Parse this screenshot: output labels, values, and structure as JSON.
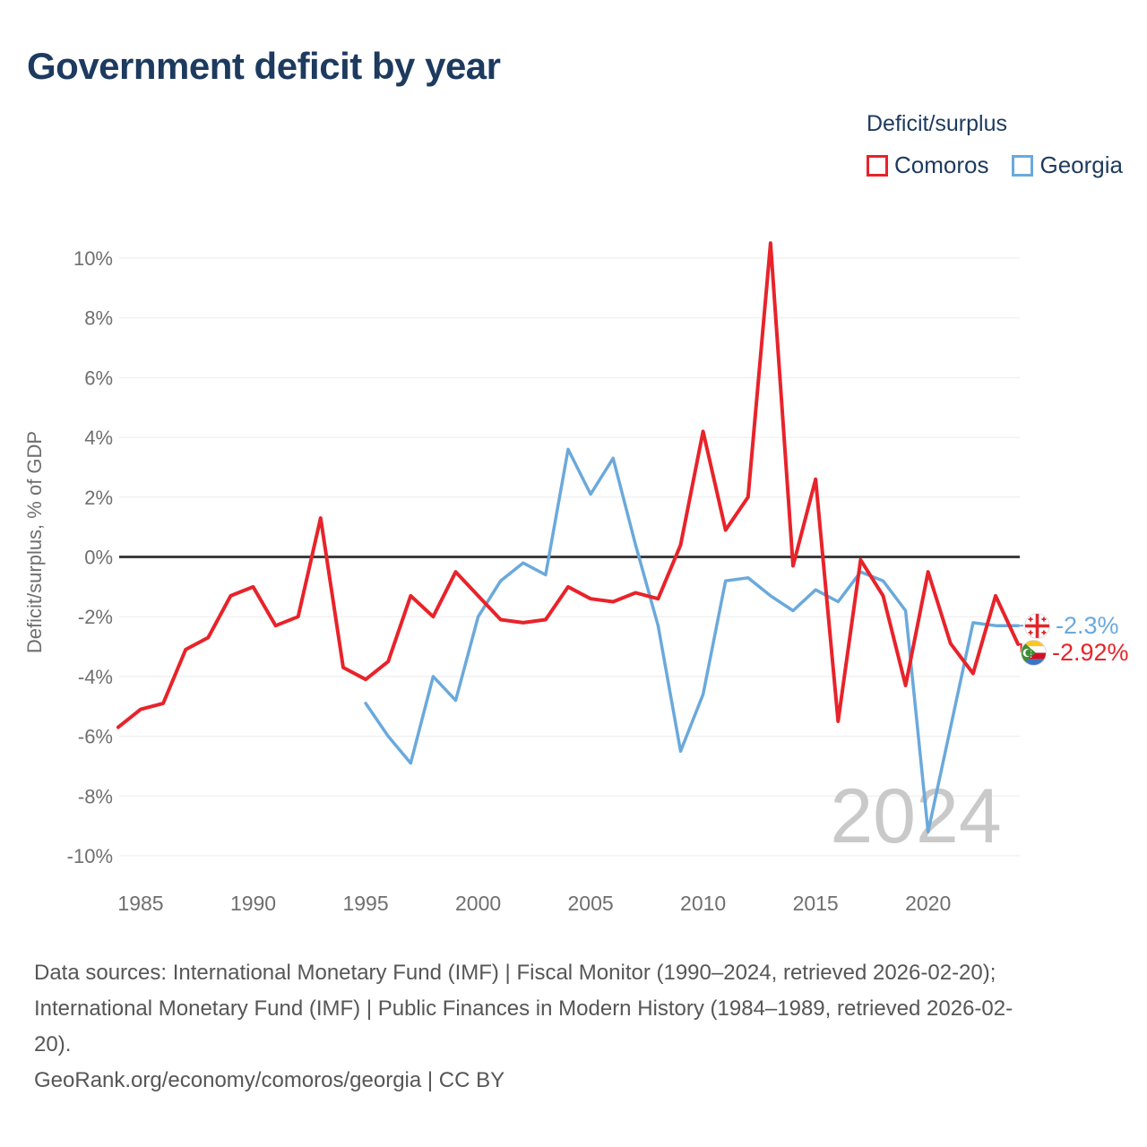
{
  "title": "Government deficit by year",
  "legend": {
    "title": "Deficit/surplus",
    "items": [
      {
        "label": "Comoros",
        "color": "#e8232a"
      },
      {
        "label": "Georgia",
        "color": "#6aa9dc"
      }
    ]
  },
  "y_axis": {
    "title": "Deficit/surplus, % of GDP",
    "max": 10,
    "min": -10,
    "step": 2,
    "tick_suffix": "%"
  },
  "x_axis": {
    "ticks": [
      1985,
      1990,
      1995,
      2000,
      2005,
      2010,
      2015,
      2020
    ]
  },
  "watermark": "2024",
  "end_labels": {
    "georgia": {
      "text": "-2.3%"
    },
    "comoros": {
      "text": "-2.92%"
    }
  },
  "footer": {
    "lines": [
      "Data sources: International Monetary Fund (IMF) | Fiscal Monitor (1990–2024, retrieved 2026-02-20);",
      "International Monetary Fund (IMF) | Public Finances in Modern History (1984–1989, retrieved 2026-02-",
      "20).",
      "GeoRank.org/economy/comoros/georgia | CC BY"
    ]
  },
  "chart_data": {
    "type": "line",
    "title": "Government deficit by year",
    "xlabel": "",
    "ylabel": "Deficit/surplus, % of GDP",
    "ylim": [
      -10,
      10
    ],
    "xlim": [
      1984,
      2024
    ],
    "grid": true,
    "legend_position": "top-right",
    "series": [
      {
        "name": "Comoros",
        "color": "#e8232a",
        "start_year": 1984,
        "values": [
          -5.7,
          -5.1,
          -4.9,
          -3.1,
          -2.7,
          -1.3,
          -1.0,
          -2.3,
          -2.0,
          1.3,
          -3.7,
          -4.1,
          -3.5,
          -1.3,
          -2.0,
          -0.5,
          -1.3,
          -2.1,
          -2.2,
          -2.1,
          -1.0,
          -1.4,
          -1.5,
          -1.2,
          -1.4,
          0.4,
          4.2,
          0.9,
          2.0,
          10.5,
          -0.3,
          2.6,
          -5.5,
          -0.1,
          -1.3,
          -4.3,
          -0.5,
          -2.9,
          -3.9,
          -1.3,
          -2.92
        ]
      },
      {
        "name": "Georgia",
        "color": "#6aa9dc",
        "start_year": 1995,
        "values": [
          -4.9,
          -6.0,
          -6.9,
          -4.0,
          -4.8,
          -2.0,
          -0.8,
          -0.2,
          -0.6,
          3.6,
          2.1,
          3.3,
          0.4,
          -2.3,
          -6.5,
          -4.6,
          -0.8,
          -0.7,
          -1.3,
          -1.8,
          -1.1,
          -1.5,
          -0.5,
          -0.8,
          -1.8,
          -9.2,
          -5.7,
          -2.2,
          -2.3,
          -2.3
        ]
      }
    ]
  }
}
